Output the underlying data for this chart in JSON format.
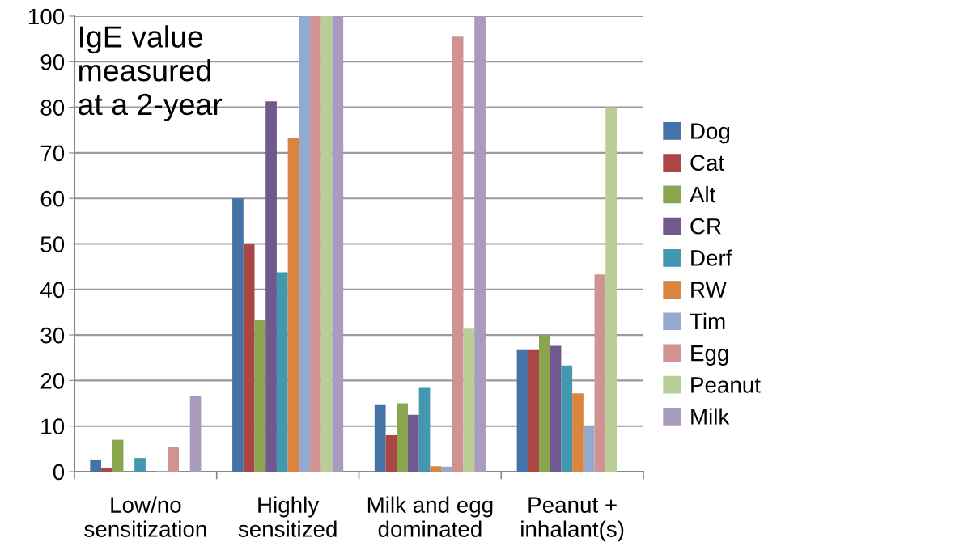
{
  "chart_data": {
    "type": "bar",
    "categories": [
      "Low/no\nsensitization",
      "Highly\nsensitized",
      "Milk and egg\ndominated",
      "Peanut +\ninhalant(s)"
    ],
    "series": [
      {
        "name": "Dog",
        "color": "#4572a7",
        "values": [
          2.5,
          60,
          14.6,
          26.7
        ]
      },
      {
        "name": "Cat",
        "color": "#aa4643",
        "values": [
          0.8,
          50,
          8,
          26.7
        ]
      },
      {
        "name": "Alt",
        "color": "#89a54e",
        "values": [
          7,
          33.3,
          15,
          30
        ]
      },
      {
        "name": "CR",
        "color": "#71588f",
        "values": [
          0,
          81.3,
          12.5,
          27.6
        ]
      },
      {
        "name": "Derf",
        "color": "#4198af",
        "values": [
          3,
          43.8,
          18.4,
          23.3
        ]
      },
      {
        "name": "RW",
        "color": "#db843d",
        "values": [
          0,
          73.3,
          1.2,
          17.2
        ]
      },
      {
        "name": "Tim",
        "color": "#93a9cf",
        "values": [
          0.2,
          100,
          1.1,
          10
        ]
      },
      {
        "name": "Egg",
        "color": "#d19392",
        "values": [
          5.5,
          100,
          95.5,
          43.3
        ]
      },
      {
        "name": "Peanut",
        "color": "#b9cd96",
        "values": [
          0,
          100,
          31.4,
          80
        ]
      },
      {
        "name": "Milk",
        "color": "#a99bbd",
        "values": [
          16.7,
          100,
          100,
          0
        ]
      }
    ],
    "ylim": [
      0,
      100
    ],
    "yticks": [
      0,
      10,
      20,
      30,
      40,
      50,
      60,
      70,
      80,
      90,
      100
    ],
    "grid": "y",
    "legend": "right",
    "annotations": [
      "IgE value\nmeasured\nat a 2-year"
    ]
  }
}
